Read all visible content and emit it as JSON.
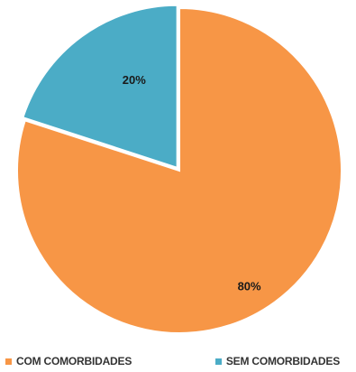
{
  "chart_data": {
    "type": "pie",
    "categories": [
      "COM COMORBIDADES",
      "SEM COMORBIDADES"
    ],
    "values": [
      80,
      20
    ],
    "data_labels": [
      "80%",
      "20%"
    ],
    "colors": [
      "#F79646",
      "#4BACC6"
    ],
    "start_angle_deg": 0,
    "direction": "clockwise",
    "legend_position": "bottom"
  },
  "legend": {
    "items": [
      {
        "label": "COM COMORBIDADES",
        "color": "#F79646"
      },
      {
        "label": "SEM COMORBIDADES",
        "color": "#4BACC6"
      }
    ]
  }
}
